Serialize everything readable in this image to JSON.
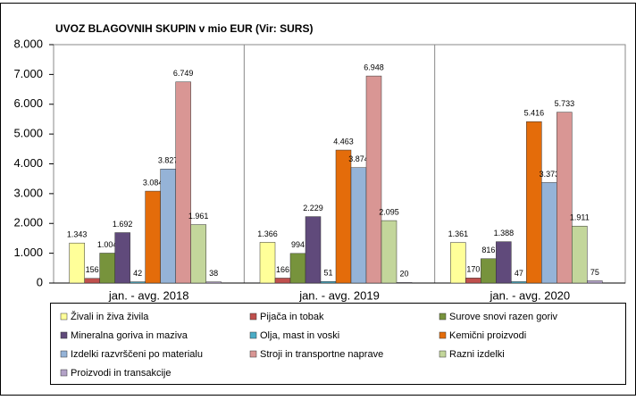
{
  "chart_data": {
    "type": "bar",
    "title": "UVOZ BLAGOVNIH SKUPIN v mio EUR (Vir: SURS)",
    "categories": [
      "jan. - avg. 2018",
      "jan. - avg. 2019",
      "jan. - avg. 2020"
    ],
    "series": [
      {
        "name": "Živali in živa živila",
        "color": "#ffff99",
        "values": [
          1343,
          1366,
          1361
        ],
        "value_labels": [
          "1.343",
          "1.366",
          "1.361"
        ]
      },
      {
        "name": "Pijača in tobak",
        "color": "#c0504d",
        "values": [
          156,
          166,
          170
        ]
      },
      {
        "name": "Surove snovi razen goriv",
        "color": "#77933c",
        "values": [
          1004,
          994,
          816
        ],
        "value_labels": [
          "1.004",
          "994",
          "816"
        ]
      },
      {
        "name": "Mineralna goriva in maziva",
        "color": "#604a7b",
        "values": [
          1692,
          2229,
          1388
        ],
        "value_labels": [
          "1.692",
          "2.229",
          "1.388"
        ]
      },
      {
        "name": "Olja, mast in voski",
        "color": "#4bacc6",
        "values": [
          42,
          51,
          47
        ]
      },
      {
        "name": "Kemični proizvodi",
        "color": "#e46c0a",
        "values": [
          3084,
          4463,
          5416
        ],
        "value_labels": [
          "3.084",
          "4.463",
          "5.416"
        ]
      },
      {
        "name": "Izdelki razvrščeni po materialu",
        "color": "#95b3d7",
        "values": [
          3827,
          3874,
          3373
        ],
        "value_labels": [
          "3.827",
          "3.874",
          "3.373"
        ]
      },
      {
        "name": "Stroji in transportne naprave",
        "color": "#d99694",
        "values": [
          6749,
          6948,
          5733
        ],
        "value_labels": [
          "6.749",
          "6.948",
          "5.733"
        ]
      },
      {
        "name": "Razni izdelki",
        "color": "#c3d69b",
        "values": [
          1961,
          2095,
          1911
        ],
        "value_labels": [
          "1.961",
          "2.095",
          "1.911"
        ]
      },
      {
        "name": "Proizvodi in transakcije",
        "color": "#b3a2c7",
        "values": [
          38,
          20,
          75
        ]
      }
    ],
    "ylim": [
      0,
      8000
    ],
    "yticks": [
      0,
      {
        "value": 1000,
        "label": "1.000"
      },
      {
        "value": 2000,
        "label": "2.000"
      },
      {
        "value": 3000,
        "label": "3.000"
      },
      {
        "value": 4000,
        "label": "4.000"
      },
      {
        "value": 5000,
        "label": "5.000"
      },
      {
        "value": 6000,
        "label": "6.000"
      },
      {
        "value": 7000,
        "label": "7.000"
      },
      {
        "value": 8000,
        "label": "8.000"
      }
    ],
    "grid": false
  }
}
